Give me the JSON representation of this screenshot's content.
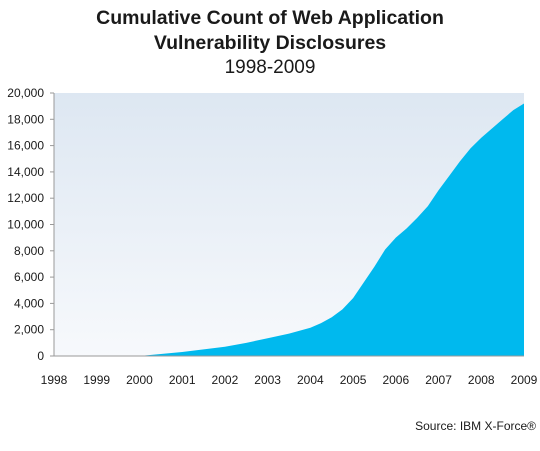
{
  "chart_data": {
    "type": "area",
    "title": "Cumulative Count of Web Application",
    "title_line2": "Vulnerability Disclosures",
    "subtitle": "1998-2009",
    "xlabel": "",
    "ylabel": "",
    "x": [
      1998,
      1999,
      2000,
      2000.5,
      2001,
      2001.5,
      2002,
      2002.5,
      2003,
      2003.5,
      2004,
      2004.25,
      2004.5,
      2004.75,
      2005,
      2005.25,
      2005.5,
      2005.75,
      2006,
      2006.25,
      2006.5,
      2006.75,
      2007,
      2007.25,
      2007.5,
      2007.75,
      2008,
      2008.25,
      2008.5,
      2008.75,
      2009
    ],
    "values": [
      0,
      0,
      0,
      150,
      300,
      500,
      700,
      1000,
      1350,
      1700,
      2150,
      2500,
      2950,
      3550,
      4400,
      5600,
      6800,
      8100,
      9000,
      9700,
      10500,
      11400,
      12600,
      13700,
      14800,
      15800,
      16600,
      17300,
      18000,
      18700,
      19200
    ],
    "x_ticks": [
      "1998",
      "1999",
      "2000",
      "2001",
      "2002",
      "2003",
      "2004",
      "2005",
      "2006",
      "2007",
      "2008",
      "2009"
    ],
    "y_ticks": [
      "0",
      "2,000",
      "4,000",
      "6,000",
      "8,000",
      "10,000",
      "12,000",
      "14,000",
      "16,000",
      "18,000",
      "20,000"
    ],
    "xlim": [
      1998,
      2009
    ],
    "ylim": [
      0,
      20000
    ],
    "grid": false,
    "legend": "none",
    "colors": {
      "area_fill": "#00b9ee",
      "plot_bg_top": "#dde7f2",
      "plot_bg_bottom": "#f7f9fc",
      "axis": "#999999"
    },
    "source": "Source: IBM X-Force®"
  }
}
